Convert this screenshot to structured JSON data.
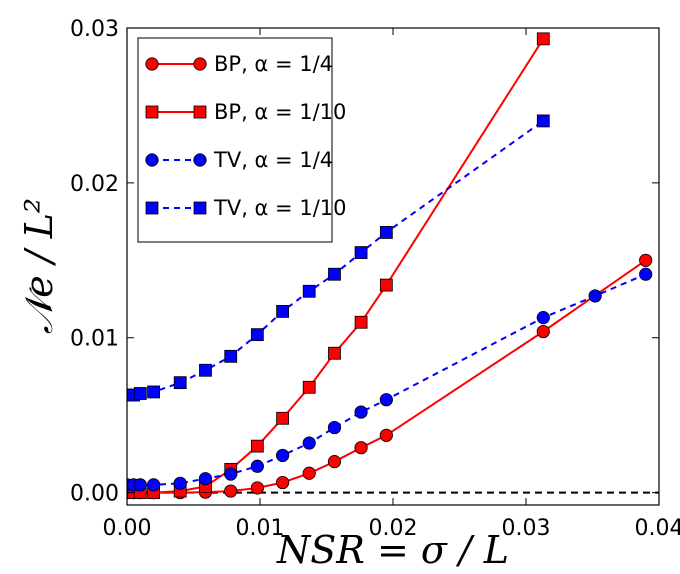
{
  "chart_data": {
    "type": "line",
    "xlabel": "NSR = σ / L",
    "ylabel": "𝒩e / L²",
    "xlim": [
      0.0,
      0.04
    ],
    "ylim": [
      -0.0008,
      0.03
    ],
    "xticks": [
      "0.00",
      "0.01",
      "0.02",
      "0.03",
      "0.04"
    ],
    "yticks": [
      "0.00",
      "0.01",
      "0.02",
      "0.03"
    ],
    "reference_line": {
      "y": 0.0,
      "style": "dashed",
      "color": "#000000"
    },
    "legend_position": "upper-left",
    "series": [
      {
        "name": "BP, α = 1/4",
        "color": "#ff0000",
        "line": "solid",
        "marker": "circle",
        "x": [
          0.0,
          0.0005,
          0.001,
          0.002,
          0.004,
          0.0059,
          0.0078,
          0.0098,
          0.0117,
          0.0137,
          0.0156,
          0.0176,
          0.0195,
          0.0313,
          0.039
        ],
        "y": [
          0.0,
          0.0,
          0.0,
          0.0,
          0.0,
          3e-05,
          0.0001,
          0.0003,
          0.00065,
          0.00125,
          0.002,
          0.0029,
          0.0037,
          0.0104,
          0.015
        ]
      },
      {
        "name": "BP, α = 1/10",
        "color": "#ff0000",
        "line": "solid",
        "marker": "square",
        "x": [
          0.0,
          0.0005,
          0.001,
          0.002,
          0.004,
          0.0059,
          0.0078,
          0.0098,
          0.0117,
          0.0137,
          0.0156,
          0.0176,
          0.0195,
          0.0313
        ],
        "y": [
          0.0,
          0.0,
          0.0,
          0.0,
          0.0001,
          0.0004,
          0.0015,
          0.003,
          0.0048,
          0.0068,
          0.009,
          0.011,
          0.0134,
          0.0293
        ]
      },
      {
        "name": "TV, α = 1/4",
        "color": "#0000ff",
        "line": "dashed",
        "marker": "circle",
        "x": [
          0.0,
          0.0005,
          0.001,
          0.002,
          0.004,
          0.0059,
          0.0078,
          0.0098,
          0.0117,
          0.0137,
          0.0156,
          0.0176,
          0.0195,
          0.0313,
          0.0352,
          0.039
        ],
        "y": [
          0.0005,
          0.0005,
          0.0005,
          0.0005,
          0.0006,
          0.0009,
          0.0012,
          0.0017,
          0.0024,
          0.0032,
          0.0042,
          0.0052,
          0.006,
          0.0113,
          0.0127,
          0.0141
        ]
      },
      {
        "name": "TV, α = 1/10",
        "color": "#0000ff",
        "line": "dashed",
        "marker": "square",
        "x": [
          0.0,
          0.0005,
          0.001,
          0.002,
          0.004,
          0.0059,
          0.0078,
          0.0098,
          0.0117,
          0.0137,
          0.0156,
          0.0176,
          0.0195,
          0.0313
        ],
        "y": [
          0.0063,
          0.0063,
          0.0064,
          0.0065,
          0.0071,
          0.0079,
          0.0088,
          0.0102,
          0.0117,
          0.013,
          0.0141,
          0.0155,
          0.0168,
          0.024
        ]
      }
    ]
  }
}
